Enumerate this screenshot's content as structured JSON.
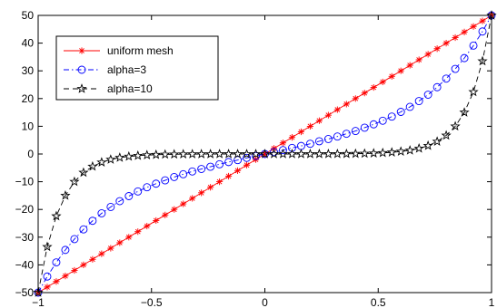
{
  "chart_data": {
    "type": "line",
    "title": "",
    "xlabel": "",
    "ylabel": "",
    "xlim": [
      -1,
      1
    ],
    "ylim": [
      -50,
      50
    ],
    "xticks": [
      -1,
      -0.5,
      0,
      0.5,
      1
    ],
    "yticks": [
      -50,
      -40,
      -30,
      -20,
      -10,
      0,
      10,
      20,
      30,
      40,
      50
    ],
    "xtick_labels": [
      "−1",
      "−0.5",
      "0",
      "0.5",
      "1"
    ],
    "ytick_labels": [
      "−50",
      "−40",
      "−30",
      "−20",
      "−10",
      "0",
      "10",
      "20",
      "30",
      "40",
      "50"
    ],
    "grid": false,
    "legend_position": "top-left",
    "series": [
      {
        "name": "uniform mesh",
        "color": "#ff0000",
        "line_style": "solid",
        "marker": "asterisk",
        "x": [
          -1.0,
          -0.96,
          -0.92,
          -0.88,
          -0.84,
          -0.8,
          -0.76,
          -0.72,
          -0.68,
          -0.64,
          -0.6,
          -0.56,
          -0.52,
          -0.48,
          -0.44,
          -0.4,
          -0.36,
          -0.32,
          -0.28,
          -0.24,
          -0.2,
          -0.16,
          -0.12,
          -0.08,
          -0.04,
          0.0,
          0.04,
          0.08,
          0.12,
          0.16,
          0.2,
          0.24,
          0.28,
          0.32,
          0.36,
          0.4,
          0.44,
          0.48,
          0.52,
          0.56,
          0.6,
          0.64,
          0.68,
          0.72,
          0.76,
          0.8,
          0.84,
          0.88,
          0.92,
          0.96,
          1.0
        ],
        "y": [
          -50,
          -48,
          -46,
          -44,
          -42,
          -40,
          -38,
          -36,
          -34,
          -32,
          -30,
          -28,
          -26,
          -24,
          -22,
          -20,
          -18,
          -16,
          -14,
          -12,
          -10,
          -8,
          -6,
          -4,
          -2,
          0,
          2,
          4,
          6,
          8,
          10,
          12,
          14,
          16,
          18,
          20,
          22,
          24,
          26,
          28,
          30,
          32,
          34,
          36,
          38,
          40,
          42,
          44,
          46,
          48,
          50
        ]
      },
      {
        "name": "alpha=3",
        "color": "#0000ff",
        "line_style": "dashdot",
        "marker": "circle",
        "x": [
          -1.0,
          -0.96,
          -0.92,
          -0.88,
          -0.84,
          -0.8,
          -0.76,
          -0.72,
          -0.68,
          -0.64,
          -0.6,
          -0.56,
          -0.52,
          -0.48,
          -0.44,
          -0.4,
          -0.36,
          -0.32,
          -0.28,
          -0.24,
          -0.2,
          -0.16,
          -0.12,
          -0.08,
          -0.04,
          0.0,
          0.04,
          0.08,
          0.12,
          0.16,
          0.2,
          0.24,
          0.28,
          0.32,
          0.36,
          0.4,
          0.44,
          0.48,
          0.52,
          0.56,
          0.6,
          0.64,
          0.68,
          0.72,
          0.76,
          0.8,
          0.84,
          0.88,
          0.92,
          0.96,
          1.0
        ],
        "y": [
          -50,
          -44.2,
          -39.1,
          -34.6,
          -30.7,
          -27.2,
          -24.1,
          -21.4,
          -19.1,
          -17.0,
          -15.2,
          -13.5,
          -12.0,
          -10.7,
          -9.5,
          -8.3,
          -7.3,
          -6.3,
          -5.4,
          -4.6,
          -3.7,
          -2.9,
          -2.2,
          -1.4,
          -0.7,
          0,
          0.7,
          1.4,
          2.2,
          2.9,
          3.7,
          4.6,
          5.4,
          6.3,
          7.3,
          8.3,
          9.5,
          10.7,
          12.0,
          13.5,
          15.2,
          17.0,
          19.1,
          21.4,
          24.1,
          27.2,
          30.7,
          34.6,
          39.1,
          44.2,
          50
        ]
      },
      {
        "name": "alpha=10",
        "color": "#000000",
        "line_style": "dashed",
        "marker": "star",
        "x": [
          -1.0,
          -0.96,
          -0.92,
          -0.88,
          -0.84,
          -0.8,
          -0.76,
          -0.72,
          -0.68,
          -0.64,
          -0.6,
          -0.56,
          -0.52,
          -0.48,
          -0.44,
          -0.4,
          -0.36,
          -0.32,
          -0.28,
          -0.24,
          -0.2,
          -0.16,
          -0.12,
          -0.08,
          -0.04,
          0.0,
          0.04,
          0.08,
          0.12,
          0.16,
          0.2,
          0.24,
          0.28,
          0.32,
          0.36,
          0.4,
          0.44,
          0.48,
          0.52,
          0.56,
          0.6,
          0.64,
          0.68,
          0.72,
          0.76,
          0.8,
          0.84,
          0.88,
          0.92,
          0.96,
          1.0
        ],
        "y": [
          -50,
          -33.5,
          -22.4,
          -15.0,
          -10.0,
          -6.7,
          -4.5,
          -3.0,
          -2.0,
          -1.3,
          -0.9,
          -0.6,
          -0.4,
          -0.26,
          -0.17,
          -0.11,
          -0.07,
          -0.05,
          -0.03,
          -0.02,
          -0.01,
          0,
          0,
          0,
          0,
          0,
          0,
          0,
          0,
          0,
          0.01,
          0.02,
          0.03,
          0.05,
          0.07,
          0.11,
          0.17,
          0.26,
          0.4,
          0.6,
          0.9,
          1.3,
          2.0,
          3.0,
          4.5,
          6.7,
          10.0,
          15.0,
          22.4,
          33.5,
          50
        ]
      }
    ]
  }
}
